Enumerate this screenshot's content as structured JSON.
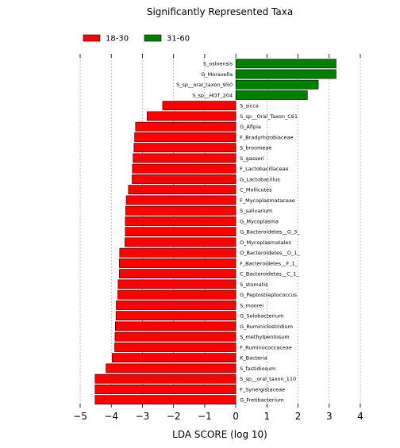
{
  "chart_data": {
    "type": "bar",
    "orientation": "horizontal",
    "title": "Significantly Represented Taxa",
    "xlabel": "LDA SCORE (log 10)",
    "ylabel": "",
    "xlim": [
      -5,
      4
    ],
    "xticks": [
      -5,
      -4,
      -3,
      -2,
      -1,
      0,
      1,
      2,
      3,
      4
    ],
    "xtick_labels": [
      "−5",
      "−4",
      "−3",
      "−2",
      "−1",
      "0",
      "1",
      "2",
      "3",
      "4"
    ],
    "grid": "vertical dotted",
    "legend_position": "top-left",
    "legend": [
      {
        "name": "18-30",
        "color": "#ff0000"
      },
      {
        "name": "31-60",
        "color": "#008000"
      }
    ],
    "bars": [
      {
        "label": "S_osloensis",
        "value": 3.22,
        "group": "31-60"
      },
      {
        "label": "G_Moraxella",
        "value": 3.22,
        "group": "31-60"
      },
      {
        "label": "S_sp__oral_taxon_950",
        "value": 2.65,
        "group": "31-60"
      },
      {
        "label": "S_sp__HOT_204",
        "value": 2.3,
        "group": "31-60"
      },
      {
        "label": "S_sicca",
        "value": -2.35,
        "group": "18-30"
      },
      {
        "label": "S_sp__Oral_Taxon_C61",
        "value": -2.85,
        "group": "18-30"
      },
      {
        "label": "G_Afipia",
        "value": -3.22,
        "group": "18-30"
      },
      {
        "label": "F_Bradyrhizobiaceae",
        "value": -3.25,
        "group": "18-30"
      },
      {
        "label": "S_broomeae",
        "value": -3.27,
        "group": "18-30"
      },
      {
        "label": "S_gasseri",
        "value": -3.3,
        "group": "18-30"
      },
      {
        "label": "F_Lactobacillaceae",
        "value": -3.32,
        "group": "18-30"
      },
      {
        "label": "G_Lactobacillus",
        "value": -3.33,
        "group": "18-30"
      },
      {
        "label": "C_Mollicutes",
        "value": -3.45,
        "group": "18-30"
      },
      {
        "label": "F_Mycoplasmataceae",
        "value": -3.52,
        "group": "18-30"
      },
      {
        "label": "S_salivarium",
        "value": -3.54,
        "group": "18-30"
      },
      {
        "label": "G_Mycoplasma",
        "value": -3.55,
        "group": "18-30"
      },
      {
        "label": "G_Bacteroidetes__G_3_",
        "value": -3.55,
        "group": "18-30"
      },
      {
        "label": "O_Mycoplasmatales",
        "value": -3.56,
        "group": "18-30"
      },
      {
        "label": "O_Bacteroidetes__O_1_",
        "value": -3.73,
        "group": "18-30"
      },
      {
        "label": "F_Bacteroidetes__F_1_",
        "value": -3.74,
        "group": "18-30"
      },
      {
        "label": "C_Bacteroidetes__C_1_",
        "value": -3.74,
        "group": "18-30"
      },
      {
        "label": "S_stomatis",
        "value": -3.78,
        "group": "18-30"
      },
      {
        "label": "G_Peptostreptococcus",
        "value": -3.79,
        "group": "18-30"
      },
      {
        "label": "S_moorei",
        "value": -3.84,
        "group": "18-30"
      },
      {
        "label": "G_Solobacterium",
        "value": -3.85,
        "group": "18-30"
      },
      {
        "label": "G_Ruminiclostridium",
        "value": -3.87,
        "group": "18-30"
      },
      {
        "label": "S_methylpentosum",
        "value": -3.88,
        "group": "18-30"
      },
      {
        "label": "F_Ruminococcaceae",
        "value": -3.89,
        "group": "18-30"
      },
      {
        "label": "K_Bacteria",
        "value": -3.97,
        "group": "18-30"
      },
      {
        "label": "S_fastidiosum",
        "value": -4.17,
        "group": "18-30"
      },
      {
        "label": "S_sp__oral_taxon_110",
        "value": -4.52,
        "group": "18-30"
      },
      {
        "label": "F_Synergistaceae",
        "value": -4.52,
        "group": "18-30"
      },
      {
        "label": "G_Fretibacterium",
        "value": -4.52,
        "group": "18-30"
      }
    ]
  }
}
